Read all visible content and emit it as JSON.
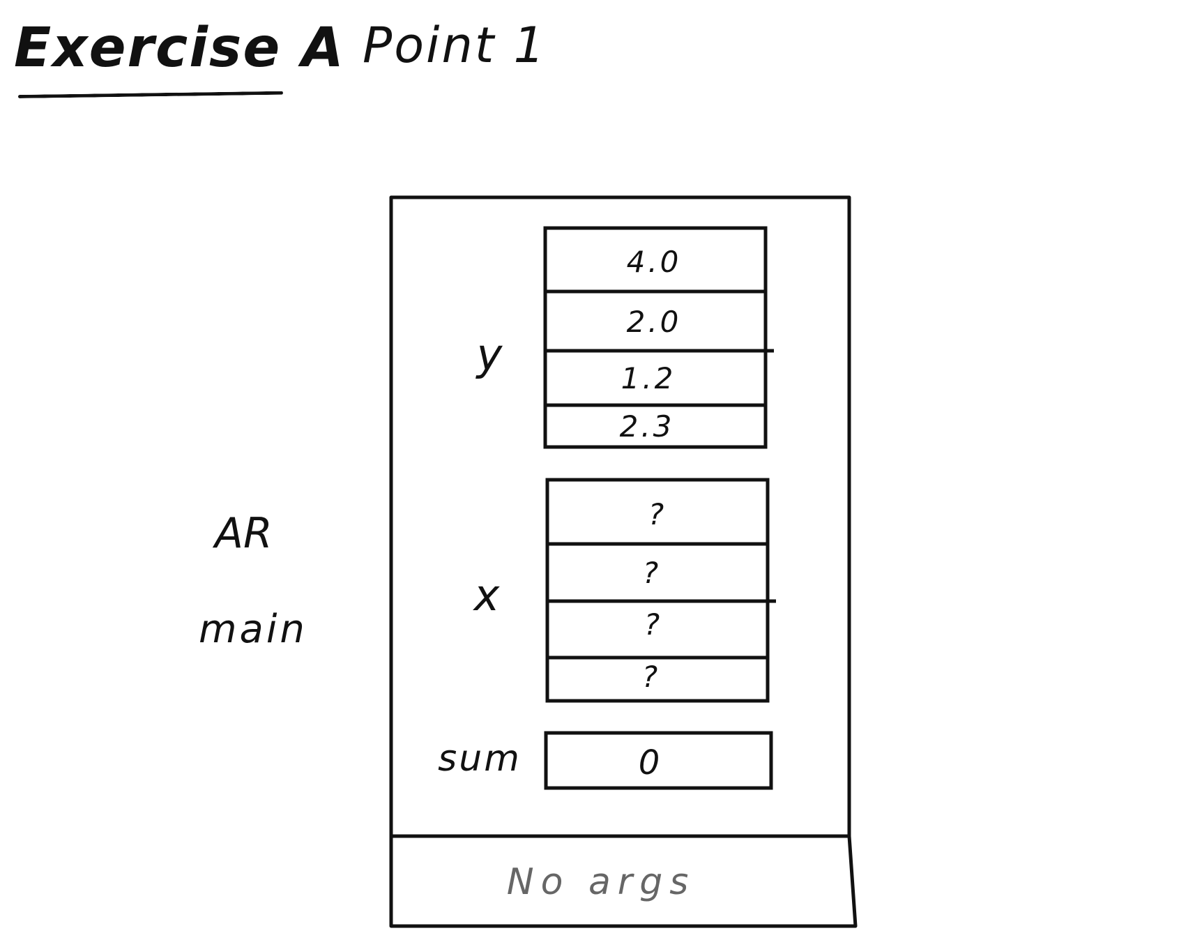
{
  "title": {
    "exercise": "Exercise A",
    "point": "Point 1"
  },
  "activation_record": {
    "label": "AR",
    "name": "main",
    "variables": [
      {
        "name": "y",
        "cells": [
          "4.0",
          "2.0",
          "1.2",
          "2.3"
        ]
      },
      {
        "name": "x",
        "cells": [
          "?",
          "?",
          "?",
          "?"
        ]
      },
      {
        "name": "sum",
        "cells": [
          "0"
        ]
      }
    ],
    "args_text": "No args"
  },
  "colors": {
    "ink": "#111111",
    "args_ink": "#666666",
    "background": "#ffffff"
  }
}
